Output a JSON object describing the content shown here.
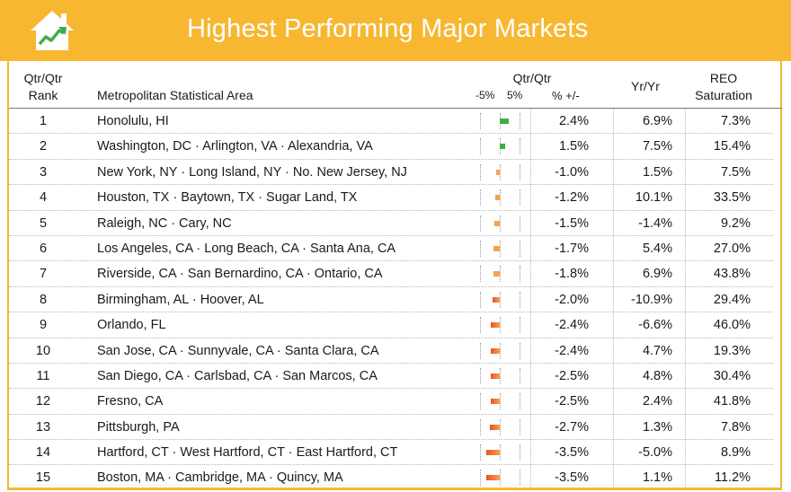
{
  "header": {
    "title": "Highest Performing Major Markets",
    "logo_icon": "house-with-rising-chart-icon"
  },
  "columns": {
    "rank": [
      "Qtr/Qtr",
      "Rank"
    ],
    "msa": "Metropolitan Statistical Area",
    "qtr_group": "Qtr/Qtr",
    "scale_min_label": "-5%",
    "scale_max_label": "5%",
    "qtr_unit": "% +/-",
    "yr": "Yr/Yr",
    "reo": [
      "REO",
      "Saturation"
    ]
  },
  "colors": {
    "accent": "#f7b731",
    "positive": "#3fae49",
    "negative_light": "#f7a24a",
    "negative_dark": "#e8502a"
  },
  "chart_data": {
    "type": "table",
    "bar_scale": [
      -5,
      5
    ],
    "rows": [
      {
        "rank": "1",
        "msa": "Honolulu, HI",
        "qtr": "2.4%",
        "qtr_value": 2.4,
        "yr": "6.9%",
        "reo": "7.3%"
      },
      {
        "rank": "2",
        "msa": "Washington, DC · Arlington, VA · Alexandria, VA",
        "qtr": "1.5%",
        "qtr_value": 1.5,
        "yr": "7.5%",
        "reo": "15.4%"
      },
      {
        "rank": "3",
        "msa": "New York, NY · Long Island, NY · No. New Jersey, NJ",
        "qtr": "-1.0%",
        "qtr_value": -1.0,
        "yr": "1.5%",
        "reo": "7.5%"
      },
      {
        "rank": "4",
        "msa": "Houston, TX · Baytown, TX · Sugar Land, TX",
        "qtr": "-1.2%",
        "qtr_value": -1.2,
        "yr": "10.1%",
        "reo": "33.5%"
      },
      {
        "rank": "5",
        "msa": "Raleigh, NC · Cary, NC",
        "qtr": "-1.5%",
        "qtr_value": -1.5,
        "yr": "-1.4%",
        "reo": "9.2%"
      },
      {
        "rank": "6",
        "msa": "Los Angeles, CA · Long Beach, CA · Santa Ana, CA",
        "qtr": "-1.7%",
        "qtr_value": -1.7,
        "yr": "5.4%",
        "reo": "27.0%"
      },
      {
        "rank": "7",
        "msa": "Riverside, CA · San Bernardino, CA · Ontario, CA",
        "qtr": "-1.8%",
        "qtr_value": -1.8,
        "yr": "6.9%",
        "reo": "43.8%"
      },
      {
        "rank": "8",
        "msa": "Birmingham, AL · Hoover, AL",
        "qtr": "-2.0%",
        "qtr_value": -2.0,
        "yr": "-10.9%",
        "reo": "29.4%"
      },
      {
        "rank": "9",
        "msa": "Orlando, FL",
        "qtr": "-2.4%",
        "qtr_value": -2.4,
        "yr": "-6.6%",
        "reo": "46.0%"
      },
      {
        "rank": "10",
        "msa": "San Jose, CA · Sunnyvale, CA · Santa Clara, CA",
        "qtr": "-2.4%",
        "qtr_value": -2.4,
        "yr": "4.7%",
        "reo": "19.3%"
      },
      {
        "rank": "11",
        "msa": "San Diego, CA · Carlsbad, CA · San Marcos, CA",
        "qtr": "-2.5%",
        "qtr_value": -2.5,
        "yr": "4.8%",
        "reo": "30.4%"
      },
      {
        "rank": "12",
        "msa": "Fresno, CA",
        "qtr": "-2.5%",
        "qtr_value": -2.5,
        "yr": "2.4%",
        "reo": "41.8%"
      },
      {
        "rank": "13",
        "msa": "Pittsburgh, PA",
        "qtr": "-2.7%",
        "qtr_value": -2.7,
        "yr": "1.3%",
        "reo": "7.8%"
      },
      {
        "rank": "14",
        "msa": "Hartford, CT · West Hartford, CT · East Hartford, CT",
        "qtr": "-3.5%",
        "qtr_value": -3.5,
        "yr": "-5.0%",
        "reo": "8.9%"
      },
      {
        "rank": "15",
        "msa": "Boston, MA · Cambridge, MA · Quincy, MA",
        "qtr": "-3.5%",
        "qtr_value": -3.5,
        "yr": "1.1%",
        "reo": "11.2%"
      }
    ]
  }
}
